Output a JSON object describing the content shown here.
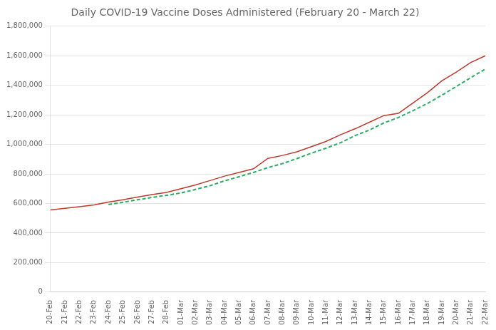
{
  "chart_data": {
    "type": "line",
    "title": "Daily COVID-19 Vaccine Doses Administered (February 20 - March 22)",
    "categories": [
      "20-Feb",
      "21-Feb",
      "22-Feb",
      "23-Feb",
      "24-Feb",
      "25-Feb",
      "26-Feb",
      "27-Feb",
      "28-Feb",
      "01-Mar",
      "02-Mar",
      "03-Mar",
      "04-Mar",
      "05-Mar",
      "06-Mar",
      "07-Mar",
      "08-Mar",
      "09-Mar",
      "10-Mar",
      "11-Mar",
      "12-Mar",
      "13-Mar",
      "14-Mar",
      "15-Mar",
      "16-Mar",
      "17-Mar",
      "18-Mar",
      "19-Mar",
      "20-Mar",
      "21-Mar",
      "22-Mar"
    ],
    "series": [
      {
        "color": "#c0392b",
        "line_style": "solid",
        "values": [
          556000,
          567000,
          578000,
          590000,
          610000,
          625000,
          643000,
          660000,
          675000,
          700000,
          725000,
          755000,
          785000,
          810000,
          835000,
          905000,
          925000,
          950000,
          985000,
          1020000,
          1065000,
          1105000,
          1150000,
          1195000,
          1210000,
          1280000,
          1350000,
          1430000,
          1490000,
          1555000,
          1600000
        ]
      },
      {
        "color": "#27ae60",
        "line_style": "dashed",
        "values": [
          null,
          null,
          null,
          null,
          593000,
          608000,
          625000,
          641000,
          655000,
          671000,
          695000,
          720000,
          753000,
          781000,
          810000,
          843000,
          870000,
          904000,
          941000,
          974000,
          1011000,
          1059000,
          1097000,
          1145000,
          1182000,
          1228000,
          1277000,
          1333000,
          1392000,
          1452000,
          1510000
        ]
      }
    ],
    "ylim": [
      0,
      1800000
    ],
    "yticks": [
      0,
      {
        "value": 200000,
        "label": "200,000"
      },
      {
        "value": 400000,
        "label": "400,000"
      },
      {
        "value": 600000,
        "label": "600,000"
      },
      {
        "value": 800000,
        "label": "800,000"
      },
      {
        "value": 1000000,
        "label": "1,000,000"
      },
      {
        "value": 1200000,
        "label": "1,200,000"
      },
      {
        "value": 1400000,
        "label": "1,400,000"
      },
      {
        "value": 1600000,
        "label": "1,600,000"
      },
      {
        "value": 1800000,
        "label": "1,800,000"
      }
    ],
    "grid": "y",
    "legend": false
  }
}
